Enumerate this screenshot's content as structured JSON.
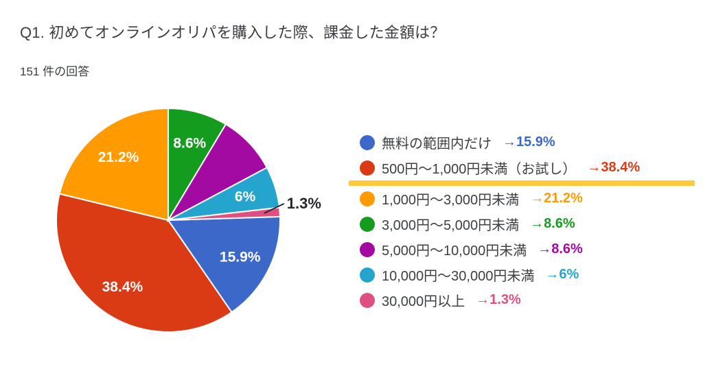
{
  "colors": {
    "text": "#3C4043",
    "title_text": "#3A3D41",
    "highlight": "#FFC93C",
    "callout_text": "#26282B",
    "slice_border": "#FFFFFF"
  },
  "chart_data": {
    "type": "pie",
    "title": "Q1. 初めてオンラインオリパを購入した際、課金した金額は？",
    "subtitle": "151 件の回答",
    "legend_position": "right",
    "rotation_deg": 88.2,
    "items": [
      {
        "label": "無料の範囲内だけ",
        "value": 15.9,
        "color": "#3C68C9",
        "legend_pct": "→15.9%",
        "slice_label": "15.9%",
        "label_mode": "inside",
        "highlighted": false
      },
      {
        "label": "500円〜1,000円未満（お試し）",
        "value": 38.4,
        "color": "#DB3B14",
        "legend_pct": "→38.4%",
        "slice_label": "38.4%",
        "label_mode": "inside",
        "highlighted": true
      },
      {
        "label": "1,000円〜3,000円未満",
        "value": 21.2,
        "color": "#FF9A00",
        "legend_pct": "→21.2%",
        "slice_label": "21.2%",
        "label_mode": "inside",
        "highlighted": false
      },
      {
        "label": "3,000円〜5,000円未満",
        "value": 8.6,
        "color": "#149C1E",
        "legend_pct": "→8.6%",
        "slice_label": "8.6%",
        "label_mode": "inside",
        "highlighted": false
      },
      {
        "label": "5,000円〜10,000円未満",
        "value": 8.6,
        "color": "#A20AA2",
        "legend_pct": "→8.6%",
        "slice_label": "",
        "label_mode": "none",
        "highlighted": false
      },
      {
        "label": "10,000円〜30,000円未満",
        "value": 6,
        "color": "#25A5CE",
        "legend_pct": "→6%",
        "slice_label": "6%",
        "label_mode": "inside",
        "highlighted": false
      },
      {
        "label": "30,000円以上",
        "value": 1.3,
        "color": "#DF4F7F",
        "legend_pct": "→1.3%",
        "slice_label": "1.3%",
        "label_mode": "callout",
        "highlighted": false
      }
    ]
  }
}
